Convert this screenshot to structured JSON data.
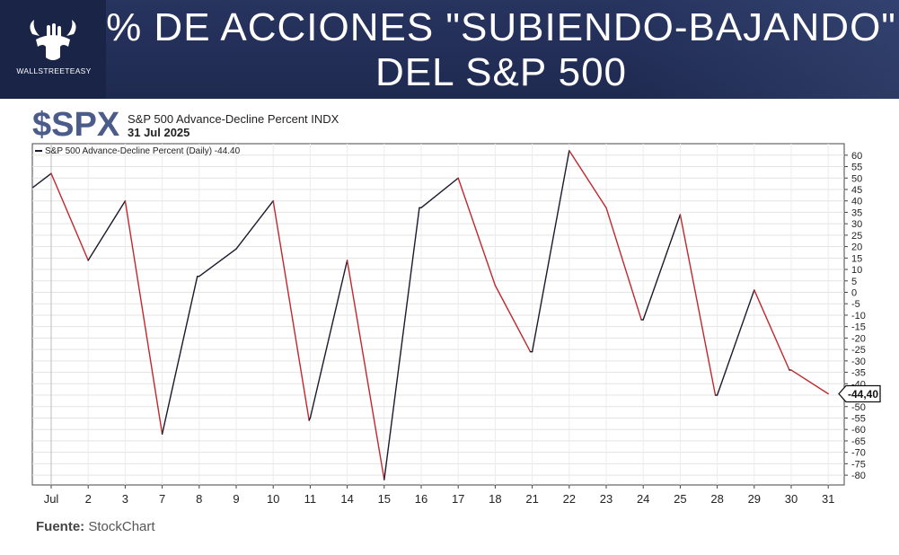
{
  "headline": {
    "line1": "% DE ACCIONES \"SUBIENDO-BAJANDO\"",
    "line2": "DEL S&P 500"
  },
  "logo": {
    "text": "WALLSTREETEASY",
    "icon": "bull-hand-icon"
  },
  "chart_header": {
    "ticker": "$SPX",
    "title": "S&P 500 Advance-Decline Percent INDX",
    "date": "31 Jul 2025"
  },
  "legend": {
    "label": "S&P 500 Advance-Decline Percent (Daily) -44.40"
  },
  "last_value_label": "-44,40",
  "source": {
    "label": "Fuente:",
    "value": "StockChart"
  },
  "colors": {
    "up": "#1a1a2e",
    "down": "#c0282d",
    "banner": "#24305a",
    "ticker": "#4b5b8a"
  },
  "chart_data": {
    "type": "line",
    "title": "S&P 500 Advance-Decline Percent INDX",
    "xlabel": "",
    "ylabel": "",
    "ylim": [
      -82,
      63
    ],
    "y_ticks": [
      60,
      55,
      50,
      45,
      40,
      35,
      30,
      25,
      20,
      15,
      10,
      5,
      0,
      -5,
      -10,
      -15,
      -20,
      -25,
      -30,
      -35,
      -40,
      -45,
      -50,
      -55,
      -60,
      -65,
      -70,
      -75,
      -80
    ],
    "categories": [
      "Jul",
      "2",
      "3",
      "7",
      "8",
      "9",
      "10",
      "11",
      "14",
      "15",
      "16",
      "17",
      "18",
      "21",
      "22",
      "23",
      "24",
      "25",
      "28",
      "29",
      "30",
      "31"
    ],
    "series": [
      {
        "name": "S&P 500 Advance-Decline Percent (Daily)",
        "x": [
          -0.5,
          0,
          1,
          2,
          3,
          3.95,
          4,
          5,
          6,
          6.97,
          7,
          8,
          9,
          9.95,
          10,
          11,
          12,
          12.95,
          13,
          14,
          15,
          15.95,
          16,
          17,
          17.95,
          18,
          19,
          19.95,
          20,
          21
        ],
        "values": [
          46,
          52,
          14,
          40,
          -62,
          7,
          7,
          19,
          40,
          -56,
          -55,
          14,
          -82,
          37,
          37,
          50,
          3,
          -26,
          -26,
          62,
          37,
          -12,
          -12,
          34,
          -45,
          -45,
          1,
          -34,
          -34,
          -44.4
        ],
        "last": -44.4
      }
    ],
    "grid": true,
    "legend_position": "top-left"
  }
}
